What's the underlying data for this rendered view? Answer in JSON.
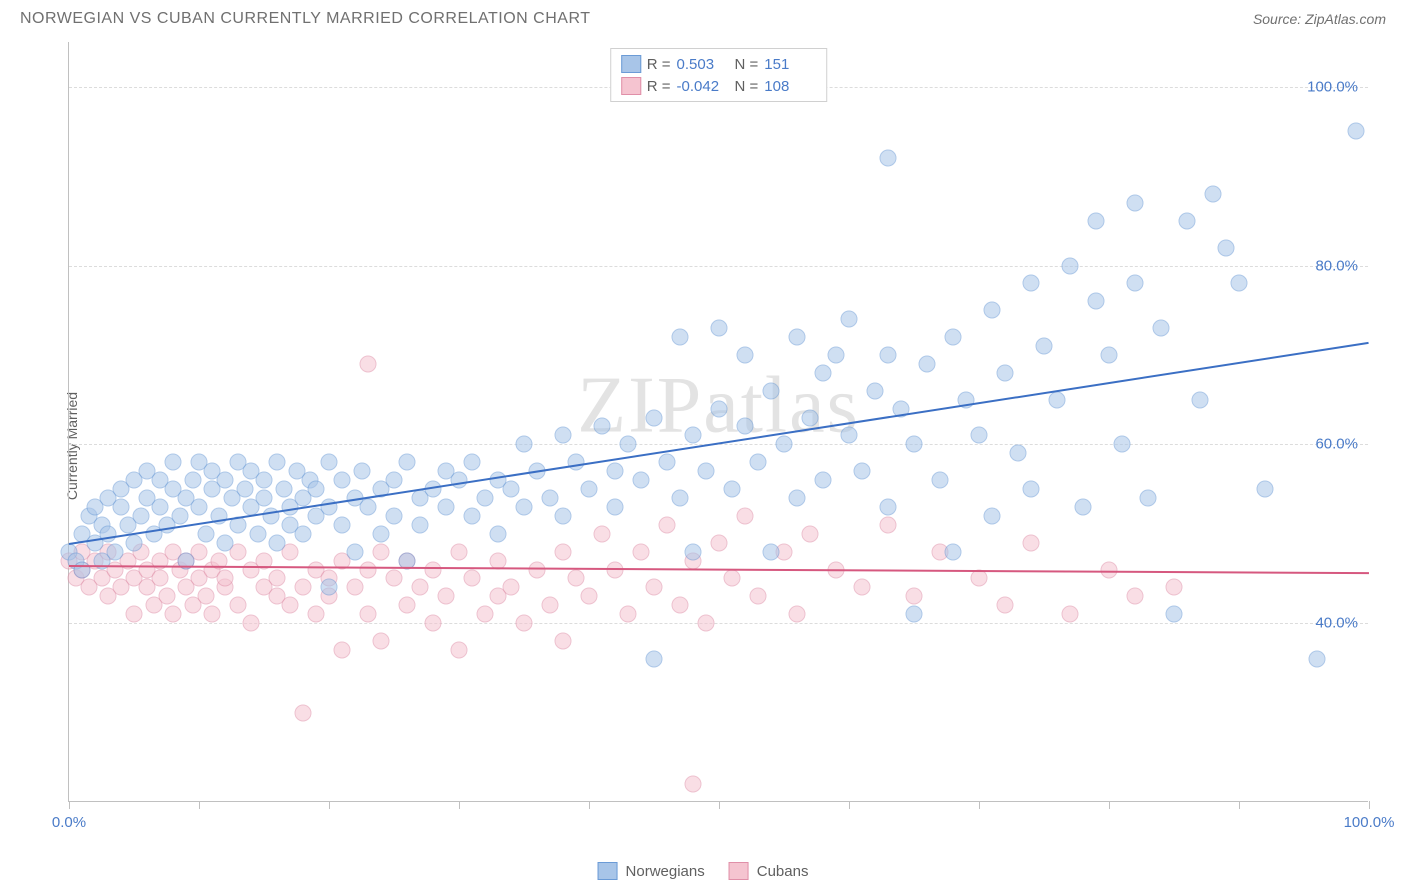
{
  "title": "NORWEGIAN VS CUBAN CURRENTLY MARRIED CORRELATION CHART",
  "source": "Source: ZipAtlas.com",
  "watermark": "ZIPatlas",
  "y_axis_label": "Currently Married",
  "chart": {
    "type": "scatter",
    "xlim": [
      0,
      100
    ],
    "ylim": [
      20,
      105
    ],
    "y_gridlines": [
      40,
      60,
      80,
      100
    ],
    "y_tick_labels": [
      "40.0%",
      "60.0%",
      "80.0%",
      "100.0%"
    ],
    "x_ticks": [
      0,
      10,
      20,
      30,
      40,
      50,
      60,
      70,
      80,
      90,
      100
    ],
    "x_tick_labels": {
      "0": "0.0%",
      "100": "100.0%"
    },
    "background_color": "#ffffff",
    "grid_color": "#dcdcdc",
    "axis_color": "#c0c0c0",
    "marker_size": 17,
    "marker_opacity": 0.55,
    "series": [
      {
        "name": "Norwegians",
        "fill_color": "#a8c5e8",
        "stroke_color": "#6b9bd6",
        "line_color": "#3b6fc4",
        "R": "0.503",
        "N": "151",
        "trend": {
          "x1": 0,
          "y1": 49.0,
          "x2": 100,
          "y2": 71.5
        },
        "points": [
          [
            0,
            48
          ],
          [
            0.5,
            47
          ],
          [
            1,
            50
          ],
          [
            1,
            46
          ],
          [
            1.5,
            52
          ],
          [
            2,
            49
          ],
          [
            2,
            53
          ],
          [
            2.5,
            47
          ],
          [
            2.5,
            51
          ],
          [
            3,
            54
          ],
          [
            3,
            50
          ],
          [
            3.5,
            48
          ],
          [
            4,
            53
          ],
          [
            4,
            55
          ],
          [
            4.5,
            51
          ],
          [
            5,
            56
          ],
          [
            5,
            49
          ],
          [
            5.5,
            52
          ],
          [
            6,
            54
          ],
          [
            6,
            57
          ],
          [
            6.5,
            50
          ],
          [
            7,
            53
          ],
          [
            7,
            56
          ],
          [
            7.5,
            51
          ],
          [
            8,
            55
          ],
          [
            8,
            58
          ],
          [
            8.5,
            52
          ],
          [
            9,
            54
          ],
          [
            9,
            47
          ],
          [
            9.5,
            56
          ],
          [
            10,
            53
          ],
          [
            10,
            58
          ],
          [
            10.5,
            50
          ],
          [
            11,
            55
          ],
          [
            11,
            57
          ],
          [
            11.5,
            52
          ],
          [
            12,
            56
          ],
          [
            12,
            49
          ],
          [
            12.5,
            54
          ],
          [
            13,
            58
          ],
          [
            13,
            51
          ],
          [
            13.5,
            55
          ],
          [
            14,
            53
          ],
          [
            14,
            57
          ],
          [
            14.5,
            50
          ],
          [
            15,
            56
          ],
          [
            15,
            54
          ],
          [
            15.5,
            52
          ],
          [
            16,
            58
          ],
          [
            16,
            49
          ],
          [
            16.5,
            55
          ],
          [
            17,
            53
          ],
          [
            17,
            51
          ],
          [
            17.5,
            57
          ],
          [
            18,
            54
          ],
          [
            18,
            50
          ],
          [
            18.5,
            56
          ],
          [
            19,
            52
          ],
          [
            19,
            55
          ],
          [
            20,
            53
          ],
          [
            20,
            58
          ],
          [
            20,
            44
          ],
          [
            21,
            56
          ],
          [
            21,
            51
          ],
          [
            22,
            54
          ],
          [
            22,
            48
          ],
          [
            22.5,
            57
          ],
          [
            23,
            53
          ],
          [
            24,
            55
          ],
          [
            24,
            50
          ],
          [
            25,
            56
          ],
          [
            25,
            52
          ],
          [
            26,
            58
          ],
          [
            26,
            47
          ],
          [
            27,
            54
          ],
          [
            27,
            51
          ],
          [
            28,
            55
          ],
          [
            29,
            53
          ],
          [
            29,
            57
          ],
          [
            30,
            56
          ],
          [
            31,
            52
          ],
          [
            31,
            58
          ],
          [
            32,
            54
          ],
          [
            33,
            50
          ],
          [
            33,
            56
          ],
          [
            34,
            55
          ],
          [
            35,
            53
          ],
          [
            35,
            60
          ],
          [
            36,
            57
          ],
          [
            37,
            54
          ],
          [
            38,
            61
          ],
          [
            38,
            52
          ],
          [
            39,
            58
          ],
          [
            40,
            55
          ],
          [
            41,
            62
          ],
          [
            42,
            57
          ],
          [
            42,
            53
          ],
          [
            43,
            60
          ],
          [
            44,
            56
          ],
          [
            45,
            63
          ],
          [
            45,
            36
          ],
          [
            46,
            58
          ],
          [
            47,
            72
          ],
          [
            47,
            54
          ],
          [
            48,
            61
          ],
          [
            48,
            48
          ],
          [
            49,
            57
          ],
          [
            50,
            64
          ],
          [
            50,
            73
          ],
          [
            51,
            55
          ],
          [
            52,
            62
          ],
          [
            52,
            70
          ],
          [
            53,
            58
          ],
          [
            54,
            66
          ],
          [
            54,
            48
          ],
          [
            55,
            60
          ],
          [
            56,
            72
          ],
          [
            56,
            54
          ],
          [
            57,
            63
          ],
          [
            58,
            68
          ],
          [
            58,
            56
          ],
          [
            59,
            70
          ],
          [
            60,
            61
          ],
          [
            60,
            74
          ],
          [
            61,
            57
          ],
          [
            62,
            66
          ],
          [
            63,
            70
          ],
          [
            63,
            53
          ],
          [
            63,
            92
          ],
          [
            64,
            64
          ],
          [
            65,
            60
          ],
          [
            65,
            41
          ],
          [
            66,
            69
          ],
          [
            67,
            56
          ],
          [
            68,
            72
          ],
          [
            68,
            48
          ],
          [
            69,
            65
          ],
          [
            70,
            61
          ],
          [
            71,
            75
          ],
          [
            71,
            52
          ],
          [
            72,
            68
          ],
          [
            73,
            59
          ],
          [
            74,
            78
          ],
          [
            74,
            55
          ],
          [
            75,
            71
          ],
          [
            76,
            65
          ],
          [
            77,
            80
          ],
          [
            78,
            53
          ],
          [
            79,
            76
          ],
          [
            79,
            85
          ],
          [
            80,
            70
          ],
          [
            81,
            60
          ],
          [
            82,
            87
          ],
          [
            82,
            78
          ],
          [
            83,
            54
          ],
          [
            84,
            73
          ],
          [
            85,
            41
          ],
          [
            86,
            85
          ],
          [
            87,
            65
          ],
          [
            88,
            88
          ],
          [
            89,
            82
          ],
          [
            90,
            78
          ],
          [
            92,
            55
          ],
          [
            96,
            36
          ],
          [
            99,
            95
          ]
        ]
      },
      {
        "name": "Cubans",
        "fill_color": "#f5c4d0",
        "stroke_color": "#e08fa8",
        "line_color": "#d6587f",
        "R": "-0.042",
        "N": "108",
        "trend": {
          "x1": 0,
          "y1": 46.5,
          "x2": 100,
          "y2": 45.7
        },
        "points": [
          [
            0,
            47
          ],
          [
            0.5,
            45
          ],
          [
            1,
            46
          ],
          [
            1,
            48
          ],
          [
            1.5,
            44
          ],
          [
            2,
            47
          ],
          [
            2.5,
            45
          ],
          [
            3,
            48
          ],
          [
            3,
            43
          ],
          [
            3.5,
            46
          ],
          [
            4,
            44
          ],
          [
            4.5,
            47
          ],
          [
            5,
            45
          ],
          [
            5,
            41
          ],
          [
            5.5,
            48
          ],
          [
            6,
            44
          ],
          [
            6,
            46
          ],
          [
            6.5,
            42
          ],
          [
            7,
            47
          ],
          [
            7,
            45
          ],
          [
            7.5,
            43
          ],
          [
            8,
            48
          ],
          [
            8,
            41
          ],
          [
            8.5,
            46
          ],
          [
            9,
            44
          ],
          [
            9,
            47
          ],
          [
            9.5,
            42
          ],
          [
            10,
            45
          ],
          [
            10,
            48
          ],
          [
            10.5,
            43
          ],
          [
            11,
            46
          ],
          [
            11,
            41
          ],
          [
            11.5,
            47
          ],
          [
            12,
            44
          ],
          [
            12,
            45
          ],
          [
            13,
            42
          ],
          [
            13,
            48
          ],
          [
            14,
            46
          ],
          [
            14,
            40
          ],
          [
            15,
            44
          ],
          [
            15,
            47
          ],
          [
            16,
            43
          ],
          [
            16,
            45
          ],
          [
            17,
            42
          ],
          [
            17,
            48
          ],
          [
            18,
            30
          ],
          [
            18,
            44
          ],
          [
            19,
            46
          ],
          [
            19,
            41
          ],
          [
            20,
            45
          ],
          [
            20,
            43
          ],
          [
            21,
            47
          ],
          [
            21,
            37
          ],
          [
            22,
            44
          ],
          [
            23,
            46
          ],
          [
            23,
            41
          ],
          [
            23,
            69
          ],
          [
            24,
            48
          ],
          [
            24,
            38
          ],
          [
            25,
            45
          ],
          [
            26,
            42
          ],
          [
            26,
            47
          ],
          [
            27,
            44
          ],
          [
            28,
            40
          ],
          [
            28,
            46
          ],
          [
            29,
            43
          ],
          [
            30,
            48
          ],
          [
            30,
            37
          ],
          [
            31,
            45
          ],
          [
            32,
            41
          ],
          [
            33,
            47
          ],
          [
            33,
            43
          ],
          [
            34,
            44
          ],
          [
            35,
            40
          ],
          [
            36,
            46
          ],
          [
            37,
            42
          ],
          [
            38,
            48
          ],
          [
            38,
            38
          ],
          [
            39,
            45
          ],
          [
            40,
            43
          ],
          [
            41,
            50
          ],
          [
            42,
            46
          ],
          [
            43,
            41
          ],
          [
            44,
            48
          ],
          [
            45,
            44
          ],
          [
            46,
            51
          ],
          [
            47,
            42
          ],
          [
            48,
            47
          ],
          [
            48,
            22
          ],
          [
            49,
            40
          ],
          [
            50,
            49
          ],
          [
            51,
            45
          ],
          [
            52,
            52
          ],
          [
            53,
            43
          ],
          [
            55,
            48
          ],
          [
            56,
            41
          ],
          [
            57,
            50
          ],
          [
            59,
            46
          ],
          [
            61,
            44
          ],
          [
            63,
            51
          ],
          [
            65,
            43
          ],
          [
            67,
            48
          ],
          [
            70,
            45
          ],
          [
            72,
            42
          ],
          [
            74,
            49
          ],
          [
            77,
            41
          ],
          [
            80,
            46
          ],
          [
            82,
            43
          ],
          [
            85,
            44
          ]
        ]
      }
    ]
  },
  "legend": {
    "items": [
      "Norwegians",
      "Cubans"
    ]
  }
}
